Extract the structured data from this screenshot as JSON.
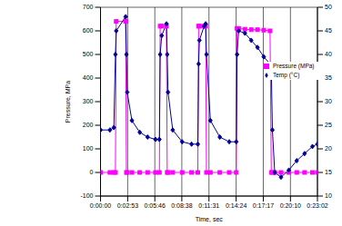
{
  "chart_data": {
    "type": "line",
    "x_label": "Time, sec",
    "y_label": "Pressure, MPa",
    "x": [
      0,
      60,
      85,
      95,
      100,
      160,
      165,
      170,
      200,
      250,
      300,
      350,
      375,
      380,
      390,
      420,
      425,
      430,
      460,
      520,
      580,
      620,
      625,
      630,
      660,
      670,
      675,
      700,
      760,
      820,
      865,
      870,
      880,
      920,
      960,
      1000,
      1040,
      1080,
      1088,
      1095,
      1110,
      1150,
      1200,
      1250,
      1300,
      1350,
      1382
    ],
    "series": [
      {
        "name": "Pressure (MPa)",
        "color": "#ff00ff",
        "marker": "square",
        "values": [
          0,
          0,
          0,
          0,
          640,
          640,
          0,
          0,
          0,
          0,
          0,
          0,
          0,
          620,
          620,
          620,
          0,
          0,
          0,
          0,
          0,
          0,
          620,
          620,
          620,
          620,
          0,
          0,
          0,
          0,
          0,
          610,
          610,
          607,
          605,
          605,
          603,
          600,
          0,
          0,
          0,
          0,
          0,
          0,
          0,
          0,
          0
        ]
      },
      {
        "name": "Temp (°C)",
        "color": "#000099",
        "marker": "diamond",
        "axis": "y2",
        "values": [
          24,
          24,
          24.5,
          40,
          45,
          48,
          40,
          32,
          26,
          23.5,
          22.5,
          22,
          22,
          40,
          44,
          46.5,
          40,
          32,
          24,
          21.5,
          21,
          21,
          38,
          43,
          46,
          46.5,
          40,
          26,
          22.5,
          21.5,
          21.5,
          40,
          45,
          44.5,
          43,
          41.5,
          39.5,
          38,
          37,
          24,
          15,
          14,
          15.5,
          17.5,
          19,
          20.5,
          21
        ]
      }
    ],
    "xlim": [
      0,
      1382
    ],
    "xticks": [
      {
        "value": 0,
        "label": "0:00:00"
      },
      {
        "value": 173,
        "label": "0:02:53"
      },
      {
        "value": 346,
        "label": "0:05:46"
      },
      {
        "value": 518,
        "label": "0:08:38"
      },
      {
        "value": 691,
        "label": "0:11:31"
      },
      {
        "value": 864,
        "label": "0:14:24"
      },
      {
        "value": 1037,
        "label": "0:17:17"
      },
      {
        "value": 1210,
        "label": "0:20:10"
      },
      {
        "value": 1382,
        "label": "0:23:02"
      }
    ],
    "ylim": [
      -100,
      700
    ],
    "yticks": [
      -100,
      0,
      100,
      200,
      300,
      400,
      500,
      600,
      700
    ],
    "y2lim": [
      10,
      50
    ],
    "y2ticks": [
      10,
      15,
      20,
      25,
      30,
      35,
      40,
      45,
      50
    ],
    "grid": true,
    "legend": "right"
  }
}
